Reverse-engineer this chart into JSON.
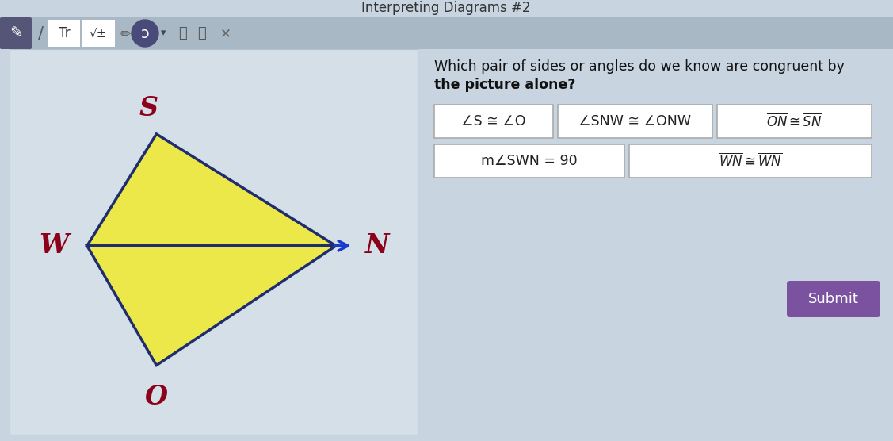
{
  "title": "Interpreting Diagrams #2",
  "question_line1": "Which pair of sides or angles do we know are congruent by",
  "question_line2": "the picture alone?",
  "bg_color": "#c8d5e0",
  "panel_bg": "#d4dfe8",
  "toolbar_bg": "#a8b8c4",
  "triangle_fill": "#ede84a",
  "triangle_edge": "#1e2d6e",
  "label_color": "#8b001a",
  "arrow_color": "#1a3acc",
  "box_bg": "#ffffff",
  "box_edge": "#aaaaaa",
  "submit_bg": "#7b52a0",
  "submit_fg": "#ffffff",
  "option1": "∠S ≅ ∠O",
  "option2": "∠SNW ≅ ∠ONW",
  "option3_pre": "ON",
  "option3_post": " ≅ ",
  "option3_suf": "SN",
  "option4": "m∠SWN = 90",
  "option5_pre": "WN",
  "option5_post": " ≅ ",
  "option5_suf": "WN",
  "toolbar_items": [
    "Tr",
    "√±"
  ],
  "Wx": 0.27,
  "Wy": 0.5,
  "Sx": 0.42,
  "Sy": 0.25,
  "Ox": 0.42,
  "Oy": 0.8,
  "Nx": 0.82,
  "Ny": 0.5
}
